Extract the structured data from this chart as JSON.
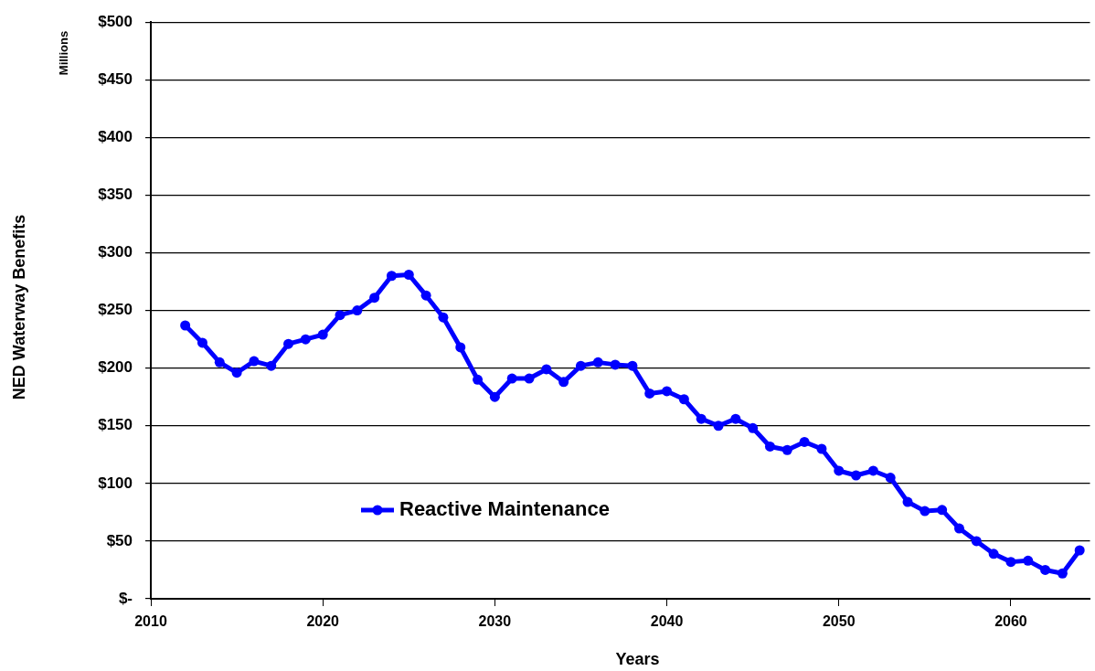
{
  "chart_data": {
    "type": "line",
    "xlabel": "Years",
    "ylabel": "NED Waterway Benefits",
    "annotations": [
      "Millions"
    ],
    "x": [
      2012,
      2013,
      2014,
      2015,
      2016,
      2017,
      2018,
      2019,
      2020,
      2021,
      2022,
      2023,
      2024,
      2025,
      2026,
      2027,
      2028,
      2029,
      2030,
      2031,
      2032,
      2033,
      2034,
      2035,
      2036,
      2037,
      2038,
      2039,
      2040,
      2041,
      2042,
      2043,
      2044,
      2045,
      2046,
      2047,
      2048,
      2049,
      2050,
      2051,
      2052,
      2053,
      2054,
      2055,
      2056,
      2057,
      2058,
      2059,
      2060,
      2061,
      2062,
      2063,
      2064
    ],
    "series": [
      {
        "name": "Reactive Maintenance",
        "color": "#0000ff",
        "values": [
          237,
          222,
          205,
          196,
          206,
          202,
          221,
          225,
          229,
          246,
          250,
          261,
          280,
          281,
          263,
          244,
          218,
          190,
          175,
          191,
          191,
          199,
          188,
          202,
          205,
          203,
          202,
          178,
          180,
          173,
          156,
          150,
          156,
          148,
          132,
          129,
          136,
          130,
          111,
          107,
          111,
          105,
          84,
          76,
          77,
          61,
          50,
          39,
          32,
          33,
          25,
          22,
          42
        ]
      }
    ],
    "xlim": [
      2010,
      2064.6
    ],
    "xticks": [
      2010,
      2020,
      2030,
      2040,
      2050,
      2060
    ],
    "ylim": [
      0,
      500
    ],
    "yticks": [
      {
        "value": 0,
        "label": "$-"
      },
      {
        "value": 50,
        "label": "$50"
      },
      {
        "value": 100,
        "label": "$100"
      },
      {
        "value": 150,
        "label": "$150"
      },
      {
        "value": 200,
        "label": "$200"
      },
      {
        "value": 250,
        "label": "$250"
      },
      {
        "value": 300,
        "label": "$300"
      },
      {
        "value": 350,
        "label": "$350"
      },
      {
        "value": 400,
        "label": "$400"
      },
      {
        "value": 450,
        "label": "$450"
      },
      {
        "value": 500,
        "label": "$500"
      }
    ],
    "grid": "y",
    "legend": "bottom left",
    "marker": "circle",
    "line_style": "solid"
  }
}
